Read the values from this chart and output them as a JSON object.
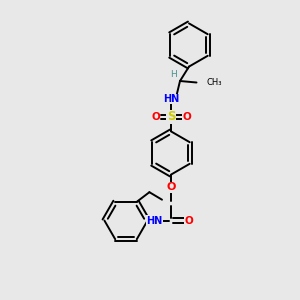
{
  "bg_color": "#e8e8e8",
  "atom_colors": {
    "C": "#000000",
    "H": "#4a9090",
    "N": "#0000ff",
    "O": "#ff0000",
    "S": "#cccc00"
  },
  "bond_color": "#000000",
  "bond_width": 1.4,
  "figsize": [
    3.0,
    3.0
  ],
  "dpi": 100,
  "xlim": [
    0,
    10
  ],
  "ylim": [
    0,
    10
  ]
}
